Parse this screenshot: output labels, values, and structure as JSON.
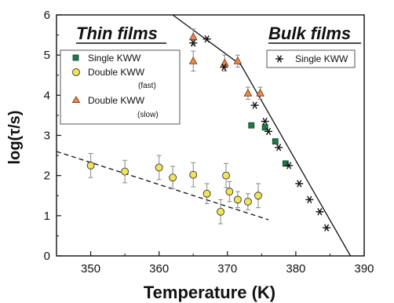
{
  "chart_data": {
    "type": "scatter",
    "xlabel": "Temperature (K)",
    "ylabel": "log(τ/s)",
    "xlim": [
      345,
      390
    ],
    "ylim": [
      0,
      6
    ],
    "x_ticks": [
      350,
      360,
      370,
      380,
      390
    ],
    "y_ticks": [
      0,
      1,
      2,
      3,
      4,
      5,
      6
    ],
    "annotations": [
      "Thin films",
      "Bulk films"
    ],
    "legend_left": {
      "placement": "upper-left",
      "entries": [
        {
          "label": "Single KWW",
          "sub": ""
        },
        {
          "label": "Double KWW",
          "sub": "(fast)"
        },
        {
          "label": "Double KWW",
          "sub": "(slow)"
        }
      ]
    },
    "legend_right": {
      "placement": "upper-right",
      "entries": [
        {
          "label": "Single KWW"
        }
      ]
    },
    "series": [
      {
        "name": "Single KWW",
        "group": "thin",
        "marker": "square",
        "color": "#1f7a4a",
        "points": [
          [
            373.5,
            3.25
          ],
          [
            375.5,
            3.2
          ],
          [
            377,
            2.85
          ],
          [
            378.5,
            2.3
          ]
        ]
      },
      {
        "name": "Double KWW (fast)",
        "group": "thin",
        "marker": "circle",
        "color": "#f2e35c",
        "points": [
          [
            350,
            2.25
          ],
          [
            355,
            2.1
          ],
          [
            360,
            2.2
          ],
          [
            362,
            1.95
          ],
          [
            365,
            2.02
          ],
          [
            367,
            1.55
          ],
          [
            369,
            1.1
          ],
          [
            369.8,
            2.0
          ],
          [
            370.3,
            1.6
          ],
          [
            371.5,
            1.4
          ],
          [
            373,
            1.35
          ],
          [
            374.5,
            1.5
          ]
        ],
        "errors": [
          0.3,
          0.28,
          0.3,
          0.28,
          0.3,
          0.25,
          0.3,
          0.3,
          0.25,
          0.2,
          0.2,
          0.3
        ]
      },
      {
        "name": "Double KWW (slow)",
        "group": "thin",
        "marker": "triangle",
        "color": "#f08a4b",
        "points": [
          [
            365,
            5.45
          ],
          [
            365,
            4.85
          ],
          [
            369.6,
            4.8
          ],
          [
            371.5,
            4.85
          ],
          [
            373,
            4.05
          ],
          [
            374.8,
            4.05
          ]
        ],
        "errors": [
          0.2,
          0.25,
          0.2,
          0.15,
          0.15,
          0.15
        ]
      },
      {
        "name": "Single KWW",
        "group": "bulk",
        "marker": "asterisk",
        "color": "#111111",
        "points": [
          [
            365,
            5.3
          ],
          [
            367,
            5.4
          ],
          [
            369.5,
            4.7
          ],
          [
            374,
            3.75
          ],
          [
            375.5,
            3.35
          ],
          [
            376,
            3.1
          ],
          [
            377.5,
            2.7
          ],
          [
            379,
            2.25
          ],
          [
            380.5,
            1.8
          ],
          [
            382,
            1.4
          ],
          [
            383.5,
            1.1
          ],
          [
            384.5,
            0.7
          ]
        ]
      }
    ],
    "fit_lines": [
      {
        "style": "dashed",
        "points": [
          [
            345,
            2.6
          ],
          [
            376,
            0.9
          ]
        ]
      },
      {
        "style": "solid",
        "points": [
          [
            362,
            6.0
          ],
          [
            372,
            4.75
          ],
          [
            388,
            0
          ]
        ]
      }
    ],
    "grid": false
  }
}
